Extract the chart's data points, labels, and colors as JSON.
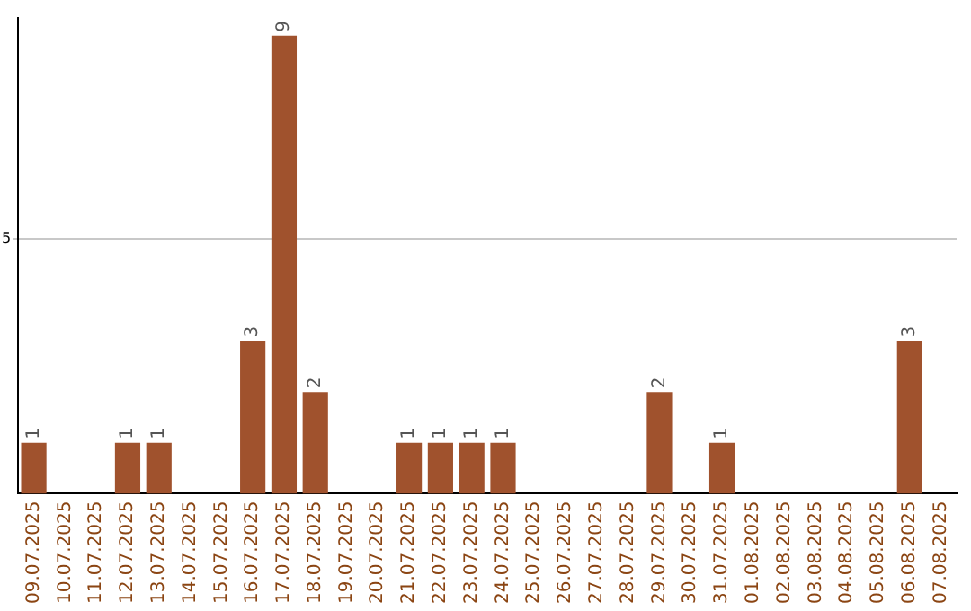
{
  "chart_data": {
    "type": "bar",
    "categories": [
      "09.07.2025",
      "10.07.2025",
      "11.07.2025",
      "12.07.2025",
      "13.07.2025",
      "14.07.2025",
      "15.07.2025",
      "16.07.2025",
      "17.07.2025",
      "18.07.2025",
      "19.07.2025",
      "20.07.2025",
      "21.07.2025",
      "22.07.2025",
      "23.07.2025",
      "24.07.2025",
      "25.07.2025",
      "26.07.2025",
      "27.07.2025",
      "28.07.2025",
      "29.07.2025",
      "30.07.2025",
      "31.07.2025",
      "01.08.2025",
      "02.08.2025",
      "03.08.2025",
      "04.08.2025",
      "05.08.2025",
      "06.08.2025",
      "07.08.2025"
    ],
    "values": [
      1,
      0,
      0,
      1,
      1,
      0,
      0,
      3,
      9,
      2,
      0,
      0,
      1,
      1,
      1,
      1,
      0,
      0,
      0,
      0,
      2,
      0,
      1,
      0,
      0,
      0,
      0,
      0,
      3,
      0
    ],
    "value_labels": [
      "1",
      null,
      null,
      "1",
      "1",
      null,
      null,
      "3",
      "9",
      "2",
      null,
      null,
      "1",
      "1",
      "1",
      "1",
      null,
      null,
      null,
      null,
      "2",
      null,
      "1",
      null,
      null,
      null,
      null,
      null,
      "3",
      null
    ],
    "color": "#a0522d",
    "ylim": [
      0,
      9.35
    ],
    "yticks": [
      5
    ],
    "grid": "y",
    "legend": false
  }
}
